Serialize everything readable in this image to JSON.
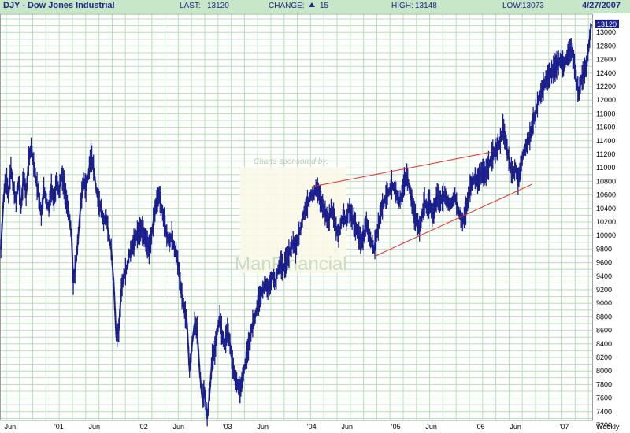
{
  "header": {
    "title": "DJY - Dow Jones Industrial",
    "last_label": "LAST:",
    "last_value": "13120",
    "change_label": "CHANGE:",
    "change_value": "15",
    "high_label": "HIGH:",
    "high_value": "13148",
    "low_label": "LOW:",
    "low_value": "13073",
    "date": "4/27/2007"
  },
  "watermark": {
    "sponsored": "Charts sponsored by:",
    "brand": "ManFinancial"
  },
  "colors": {
    "header_bg": "#c8e6c8",
    "grid": "#b8ddb8",
    "price": "#1b1f8c",
    "trendline": "#e0302a",
    "last_badge": "#1b1f8c"
  },
  "chart_data": {
    "type": "line",
    "symbol": "DJY",
    "period": "Weekly",
    "ylim": [
      7200,
      13200
    ],
    "yticks": [
      7200,
      7400,
      7600,
      7800,
      8000,
      8200,
      8400,
      8600,
      8800,
      9000,
      9200,
      9400,
      9600,
      9800,
      10000,
      10200,
      10400,
      10600,
      10800,
      11000,
      11200,
      11400,
      11600,
      11800,
      12000,
      12200,
      12400,
      12600,
      12800,
      13000
    ],
    "xlim": [
      2000.3,
      2007.33
    ],
    "xticks": [
      {
        "label": "Jun",
        "x": 2000.42
      },
      {
        "label": "'01",
        "x": 2001.0
      },
      {
        "label": "Jun",
        "x": 2001.42
      },
      {
        "label": "'02",
        "x": 2002.0
      },
      {
        "label": "Jun",
        "x": 2002.42
      },
      {
        "label": "'03",
        "x": 2003.0
      },
      {
        "label": "Jun",
        "x": 2003.42
      },
      {
        "label": "'04",
        "x": 2004.0
      },
      {
        "label": "Jun",
        "x": 2004.42
      },
      {
        "label": "'05",
        "x": 2005.0
      },
      {
        "label": "Jun",
        "x": 2005.42
      },
      {
        "label": "'06",
        "x": 2006.0
      },
      {
        "label": "Jun",
        "x": 2006.42
      },
      {
        "label": "'07",
        "x": 2007.0
      }
    ],
    "period_label": "Weekly",
    "last_value_label": "13120",
    "price_series": [
      [
        2000.31,
        9800
      ],
      [
        2000.34,
        10500
      ],
      [
        2000.37,
        10900
      ],
      [
        2000.4,
        10600
      ],
      [
        2000.43,
        11000
      ],
      [
        2000.46,
        10700
      ],
      [
        2000.49,
        10500
      ],
      [
        2000.52,
        10800
      ],
      [
        2000.55,
        10400
      ],
      [
        2000.58,
        10900
      ],
      [
        2000.61,
        10600
      ],
      [
        2000.64,
        11100
      ],
      [
        2000.67,
        11300
      ],
      [
        2000.7,
        11050
      ],
      [
        2000.73,
        10800
      ],
      [
        2000.76,
        10600
      ],
      [
        2000.79,
        10300
      ],
      [
        2000.82,
        10700
      ],
      [
        2000.85,
        10500
      ],
      [
        2000.88,
        10400
      ],
      [
        2000.91,
        10700
      ],
      [
        2000.94,
        10500
      ],
      [
        2000.97,
        10800
      ],
      [
        2001.0,
        10650
      ],
      [
        2001.03,
        10900
      ],
      [
        2001.06,
        10750
      ],
      [
        2001.09,
        10500
      ],
      [
        2001.12,
        10300
      ],
      [
        2001.15,
        10000
      ],
      [
        2001.17,
        9300
      ],
      [
        2001.2,
        9600
      ],
      [
        2001.23,
        10000
      ],
      [
        2001.26,
        10500
      ],
      [
        2001.29,
        10800
      ],
      [
        2001.32,
        10700
      ],
      [
        2001.35,
        10900
      ],
      [
        2001.38,
        11200
      ],
      [
        2001.41,
        11000
      ],
      [
        2001.44,
        10700
      ],
      [
        2001.47,
        10500
      ],
      [
        2001.5,
        10400
      ],
      [
        2001.53,
        10200
      ],
      [
        2001.56,
        10300
      ],
      [
        2001.59,
        10000
      ],
      [
        2001.62,
        9800
      ],
      [
        2001.65,
        9300
      ],
      [
        2001.68,
        8500
      ],
      [
        2001.71,
        8600
      ],
      [
        2001.74,
        9200
      ],
      [
        2001.77,
        9400
      ],
      [
        2001.8,
        9500
      ],
      [
        2001.83,
        9700
      ],
      [
        2001.86,
        9800
      ],
      [
        2001.89,
        9900
      ],
      [
        2001.92,
        10000
      ],
      [
        2001.95,
        10050
      ],
      [
        2001.98,
        10100
      ],
      [
        2002.01,
        10000
      ],
      [
        2002.04,
        9900
      ],
      [
        2002.07,
        9800
      ],
      [
        2002.1,
        10000
      ],
      [
        2002.13,
        10300
      ],
      [
        2002.16,
        10500
      ],
      [
        2002.19,
        10600
      ],
      [
        2002.22,
        10400
      ],
      [
        2002.25,
        10200
      ],
      [
        2002.28,
        10000
      ],
      [
        2002.31,
        9900
      ],
      [
        2002.34,
        10000
      ],
      [
        2002.37,
        9800
      ],
      [
        2002.4,
        9700
      ],
      [
        2002.43,
        9400
      ],
      [
        2002.46,
        9100
      ],
      [
        2002.49,
        8900
      ],
      [
        2002.52,
        8700
      ],
      [
        2002.55,
        8000
      ],
      [
        2002.58,
        8400
      ],
      [
        2002.61,
        8700
      ],
      [
        2002.64,
        8600
      ],
      [
        2002.67,
        8000
      ],
      [
        2002.7,
        7600
      ],
      [
        2002.73,
        7700
      ],
      [
        2002.76,
        7300
      ],
      [
        2002.79,
        7700
      ],
      [
        2002.82,
        8200
      ],
      [
        2002.85,
        8300
      ],
      [
        2002.88,
        8600
      ],
      [
        2002.91,
        8800
      ],
      [
        2002.94,
        8500
      ],
      [
        2002.97,
        8400
      ],
      [
        2003.0,
        8600
      ],
      [
        2003.03,
        8400
      ],
      [
        2003.06,
        8100
      ],
      [
        2003.09,
        7900
      ],
      [
        2003.12,
        7800
      ],
      [
        2003.15,
        7700
      ],
      [
        2003.18,
        7900
      ],
      [
        2003.21,
        8100
      ],
      [
        2003.24,
        8300
      ],
      [
        2003.27,
        8500
      ],
      [
        2003.3,
        8700
      ],
      [
        2003.33,
        8800
      ],
      [
        2003.36,
        9000
      ],
      [
        2003.39,
        9100
      ],
      [
        2003.42,
        9200
      ],
      [
        2003.45,
        9300
      ],
      [
        2003.48,
        9200
      ],
      [
        2003.51,
        9300
      ],
      [
        2003.54,
        9400
      ],
      [
        2003.57,
        9300
      ],
      [
        2003.6,
        9500
      ],
      [
        2003.63,
        9600
      ],
      [
        2003.66,
        9500
      ],
      [
        2003.69,
        9600
      ],
      [
        2003.72,
        9700
      ],
      [
        2003.75,
        9800
      ],
      [
        2003.78,
        9900
      ],
      [
        2003.81,
        9800
      ],
      [
        2003.84,
        10000
      ],
      [
        2003.87,
        10100
      ],
      [
        2003.9,
        10300
      ],
      [
        2003.93,
        10400
      ],
      [
        2003.96,
        10500
      ],
      [
        2003.99,
        10600
      ],
      [
        2004.02,
        10600
      ],
      [
        2004.05,
        10700
      ],
      [
        2004.08,
        10650
      ],
      [
        2004.11,
        10500
      ],
      [
        2004.14,
        10400
      ],
      [
        2004.17,
        10300
      ],
      [
        2004.2,
        10200
      ],
      [
        2004.23,
        10400
      ],
      [
        2004.26,
        10300
      ],
      [
        2004.29,
        10100
      ],
      [
        2004.32,
        10000
      ],
      [
        2004.35,
        10200
      ],
      [
        2004.38,
        10300
      ],
      [
        2004.41,
        10200
      ],
      [
        2004.44,
        10400
      ],
      [
        2004.47,
        10300
      ],
      [
        2004.5,
        10200
      ],
      [
        2004.53,
        10100
      ],
      [
        2004.56,
        10000
      ],
      [
        2004.59,
        9900
      ],
      [
        2004.62,
        10000
      ],
      [
        2004.65,
        10200
      ],
      [
        2004.68,
        10000
      ],
      [
        2004.71,
        9900
      ],
      [
        2004.74,
        9800
      ],
      [
        2004.77,
        10000
      ],
      [
        2004.8,
        10200
      ],
      [
        2004.83,
        10400
      ],
      [
        2004.86,
        10500
      ],
      [
        2004.89,
        10600
      ],
      [
        2004.92,
        10650
      ],
      [
        2004.95,
        10750
      ],
      [
        2004.98,
        10700
      ],
      [
        2005.01,
        10600
      ],
      [
        2005.04,
        10500
      ],
      [
        2005.07,
        10600
      ],
      [
        2005.1,
        10800
      ],
      [
        2005.13,
        10900
      ],
      [
        2005.16,
        10700
      ],
      [
        2005.19,
        10500
      ],
      [
        2005.22,
        10300
      ],
      [
        2005.25,
        10200
      ],
      [
        2005.28,
        10100
      ],
      [
        2005.31,
        10300
      ],
      [
        2005.34,
        10500
      ],
      [
        2005.37,
        10400
      ],
      [
        2005.4,
        10500
      ],
      [
        2005.43,
        10300
      ],
      [
        2005.46,
        10400
      ],
      [
        2005.49,
        10600
      ],
      [
        2005.52,
        10500
      ],
      [
        2005.55,
        10550
      ],
      [
        2005.58,
        10600
      ],
      [
        2005.61,
        10500
      ],
      [
        2005.64,
        10450
      ],
      [
        2005.67,
        10500
      ],
      [
        2005.7,
        10600
      ],
      [
        2005.73,
        10400
      ],
      [
        2005.76,
        10300
      ],
      [
        2005.79,
        10200
      ],
      [
        2005.82,
        10300
      ],
      [
        2005.85,
        10500
      ],
      [
        2005.88,
        10700
      ],
      [
        2005.91,
        10800
      ],
      [
        2005.94,
        10850
      ],
      [
        2005.97,
        10800
      ],
      [
        2006.0,
        10900
      ],
      [
        2006.03,
        10950
      ],
      [
        2006.06,
        10900
      ],
      [
        2006.09,
        11000
      ],
      [
        2006.12,
        11100
      ],
      [
        2006.15,
        11200
      ],
      [
        2006.18,
        11250
      ],
      [
        2006.21,
        11300
      ],
      [
        2006.24,
        11400
      ],
      [
        2006.27,
        11600
      ],
      [
        2006.3,
        11400
      ],
      [
        2006.33,
        11200
      ],
      [
        2006.36,
        11000
      ],
      [
        2006.39,
        10900
      ],
      [
        2006.42,
        11000
      ],
      [
        2006.45,
        10800
      ],
      [
        2006.48,
        11000
      ],
      [
        2006.51,
        11200
      ],
      [
        2006.54,
        11300
      ],
      [
        2006.57,
        11400
      ],
      [
        2006.6,
        11500
      ],
      [
        2006.63,
        11700
      ],
      [
        2006.66,
        11800
      ],
      [
        2006.69,
        12000
      ],
      [
        2006.72,
        12100
      ],
      [
        2006.75,
        12200
      ],
      [
        2006.78,
        12300
      ],
      [
        2006.81,
        12350
      ],
      [
        2006.84,
        12400
      ],
      [
        2006.87,
        12450
      ],
      [
        2006.9,
        12500
      ],
      [
        2006.93,
        12550
      ],
      [
        2006.96,
        12600
      ],
      [
        2006.99,
        12500
      ],
      [
        2007.02,
        12600
      ],
      [
        2007.05,
        12700
      ],
      [
        2007.08,
        12750
      ],
      [
        2007.11,
        12600
      ],
      [
        2007.14,
        12300
      ],
      [
        2007.17,
        12100
      ],
      [
        2007.2,
        12300
      ],
      [
        2007.23,
        12400
      ],
      [
        2007.26,
        12500
      ],
      [
        2007.29,
        12800
      ],
      [
        2007.32,
        13120
      ]
    ],
    "trendlines": [
      {
        "name": "upper-trendline",
        "from": [
          2004.0,
          10720
        ],
        "to": [
          2006.12,
          11230
        ]
      },
      {
        "name": "lower-trendline",
        "from": [
          2004.76,
          9700
        ],
        "to": [
          2006.62,
          10760
        ]
      }
    ]
  }
}
